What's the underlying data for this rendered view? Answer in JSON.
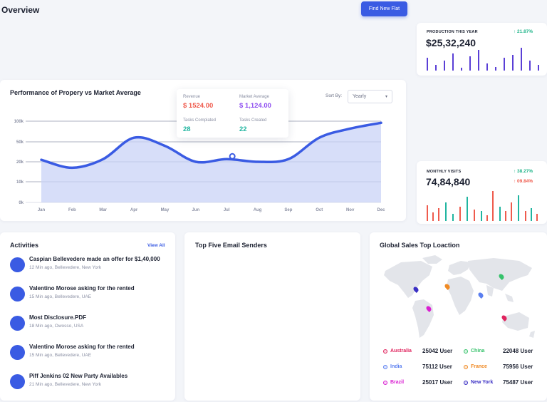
{
  "header": {
    "title": "Overview",
    "action_button": "Find New Flat"
  },
  "production": {
    "label": "PRODUCTION THIS YEAR",
    "value": "$25,32,240",
    "trend": "↑ 21.87%"
  },
  "visits": {
    "label": "MONTHLY VISITS",
    "value": "74,84,840",
    "trend_up": "↑ 38.27%",
    "trend_down": "↑ 09.84%"
  },
  "performance": {
    "title": "Performance of Propery vs Market Average",
    "sort_label": "Sort By:",
    "sort_value": "Yearly",
    "tooltip": {
      "revenue_label": "Revenue",
      "revenue_value": "$ 1524.00",
      "market_label": "Market Average",
      "market_value": "$ 1,124.00",
      "tasks_completed_label": "Tasks Complated",
      "tasks_completed_value": "28",
      "tasks_created_label": "Tasks Created",
      "tasks_created_value": "22"
    }
  },
  "chart_data": {
    "type": "area",
    "categories": [
      "Jan",
      "Feb",
      "Mar",
      "Apr",
      "May",
      "Jun",
      "Jul",
      "Aug",
      "Sep",
      "Oct",
      "Nov",
      "Dec"
    ],
    "y_ticks": [
      "0k",
      "10k",
      "20k",
      "50k",
      "100k"
    ],
    "series": [
      {
        "values": [
          23,
          17,
          24,
          60,
          44,
          20,
          24,
          20,
          24,
          60,
          82,
          96
        ]
      }
    ],
    "highlight_index": 6,
    "colors": {
      "line": "#3a5be3",
      "fill": "#c9d3f7"
    }
  },
  "activities": {
    "title": "Activities",
    "view_all": "View All",
    "items": [
      {
        "title": "Caspian Bellevedere made an offer for $1,40,000",
        "meta": "12 Min ago, Bellevedere, New York"
      },
      {
        "title": "Valentino Morose asking for the rented",
        "meta": "15 Min ago, Bellevedere, UAE"
      },
      {
        "title": "Most Disclosure.PDF",
        "meta": "18 Min ago, Owosso, USA"
      },
      {
        "title": "Valentino Morose asking for the rented",
        "meta": "15 Min ago, Bellevedere, UAE"
      },
      {
        "title": "Piff Jenkins 02 New Party Availables",
        "meta": "21 Min ago, Bellevedere, New York"
      }
    ]
  },
  "email": {
    "title": "Top Five Email Senders"
  },
  "sales": {
    "title": "Global Sales Top Loaction",
    "locations": [
      {
        "name": "Australia",
        "users": "25042 User",
        "color": "#e0245e"
      },
      {
        "name": "China",
        "users": "22048 User",
        "color": "#36c26b"
      },
      {
        "name": "India",
        "users": "75112 User",
        "color": "#5b7ff0"
      },
      {
        "name": "France",
        "users": "75956 User",
        "color": "#f08a24"
      },
      {
        "name": "Brazil",
        "users": "25017 User",
        "color": "#d91fd1"
      },
      {
        "name": "New York",
        "users": "75487 User",
        "color": "#3a2fc4"
      }
    ]
  }
}
